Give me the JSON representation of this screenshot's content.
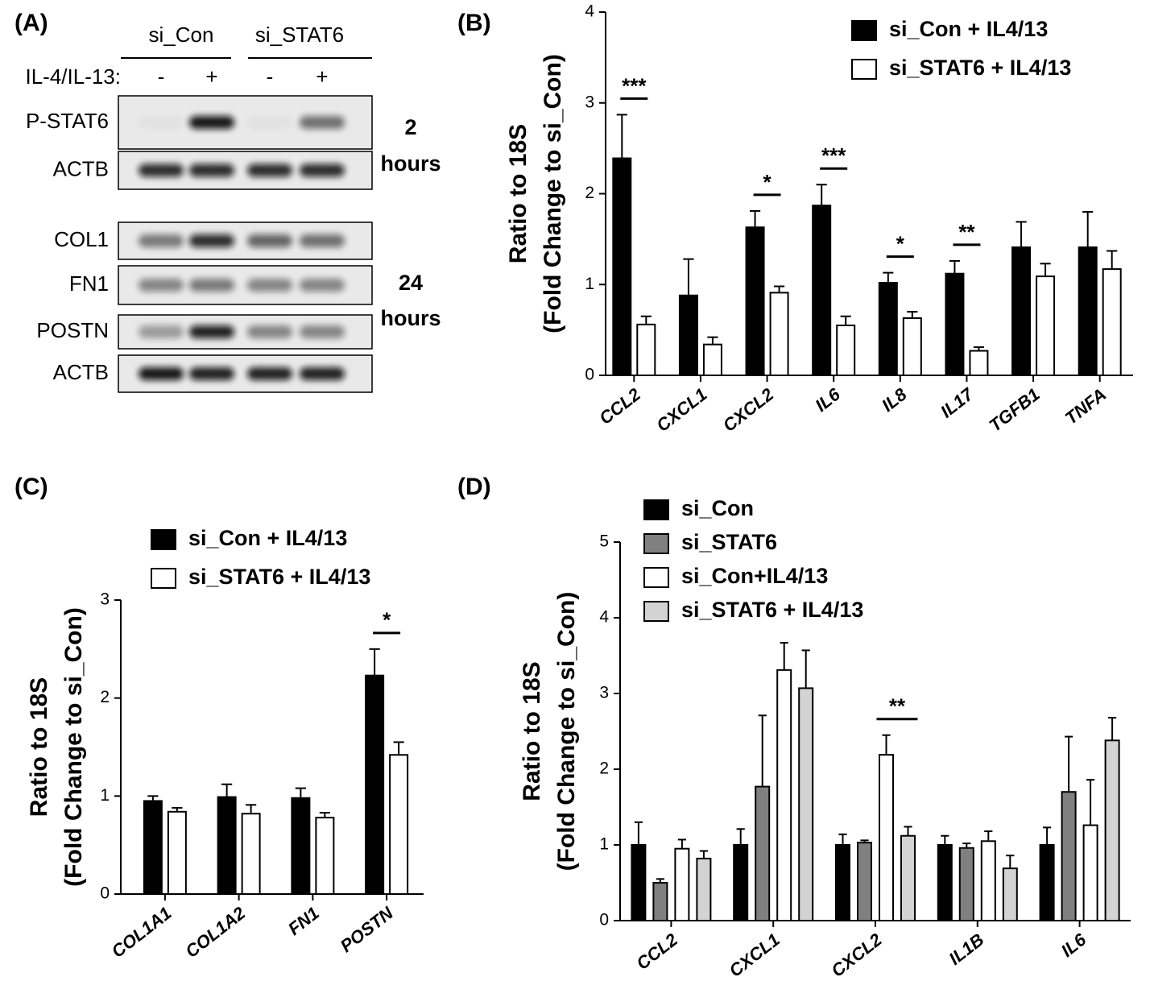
{
  "blot": {
    "label": "(A)",
    "groups": [
      "si_Con",
      "si_STAT6"
    ],
    "treatment_label": "IL-4/IL-13:",
    "treatments": [
      "-",
      "+",
      "-",
      "+"
    ],
    "sections": [
      {
        "rows": [
          "P-STAT6",
          "ACTB"
        ],
        "time": [
          "2",
          "hours"
        ]
      },
      {
        "rows": [
          "COL1",
          "FN1",
          "POSTN",
          "ACTB"
        ],
        "time": [
          "24",
          "hours"
        ]
      }
    ]
  },
  "chart_data": [
    {
      "type": "bar",
      "label": "(B)",
      "ylabel": [
        "Ratio to 18S",
        "(Fold Change to si_Con)"
      ],
      "categories": [
        "CCL2",
        "CXCL1",
        "CXCL2",
        "IL6",
        "IL8",
        "IL17",
        "TGFB1",
        "TNFA"
      ],
      "series": [
        {
          "name": "si_Con + IL4/13",
          "color": "#000000",
          "values": [
            2.39,
            0.88,
            1.63,
            1.87,
            1.02,
            1.12,
            1.41,
            1.41
          ],
          "errors": [
            0.48,
            0.4,
            0.18,
            0.23,
            0.11,
            0.14,
            0.28,
            0.39
          ]
        },
        {
          "name": "si_STAT6 + IL4/13",
          "color": "#ffffff",
          "values": [
            0.56,
            0.34,
            0.91,
            0.55,
            0.63,
            0.27,
            1.09,
            1.17
          ],
          "errors": [
            0.09,
            0.08,
            0.07,
            0.1,
            0.07,
            0.04,
            0.14,
            0.2
          ]
        }
      ],
      "significance": [
        "***",
        null,
        "*",
        "***",
        "*",
        "**",
        null,
        null
      ],
      "ylim": [
        0,
        4
      ],
      "yticks": [
        0,
        1,
        2,
        3,
        4
      ],
      "legend": "upper right"
    },
    {
      "type": "bar",
      "label": "(C)",
      "ylabel": [
        "Ratio to 18S",
        "(Fold Change to si_Con)"
      ],
      "categories": [
        "COL1A1",
        "COL1A2",
        "FN1",
        "POSTN"
      ],
      "series": [
        {
          "name": "si_Con + IL4/13",
          "color": "#000000",
          "values": [
            0.95,
            0.99,
            0.98,
            2.23
          ],
          "errors": [
            0.05,
            0.13,
            0.1,
            0.27
          ]
        },
        {
          "name": "si_STAT6 + IL4/13",
          "color": "#ffffff",
          "values": [
            0.84,
            0.82,
            0.78,
            1.42
          ],
          "errors": [
            0.04,
            0.09,
            0.05,
            0.13
          ]
        }
      ],
      "significance": [
        null,
        null,
        null,
        "*"
      ],
      "ylim": [
        0,
        3
      ],
      "yticks": [
        0,
        1,
        2,
        3
      ],
      "legend": "upper left"
    },
    {
      "type": "bar",
      "label": "(D)",
      "ylabel": [
        "Ratio to 18S",
        "(Fold Change to si_Con)"
      ],
      "categories": [
        "CCL2",
        "CXCL1",
        "CXCL2",
        "IL1B",
        "IL6"
      ],
      "series": [
        {
          "name": "si_Con",
          "color": "#000000",
          "values": [
            1.0,
            1.0,
            1.0,
            1.0,
            1.0
          ],
          "errors": [
            0.3,
            0.21,
            0.14,
            0.12,
            0.23
          ]
        },
        {
          "name": "si_STAT6",
          "color": "#808080",
          "values": [
            0.5,
            1.77,
            1.03,
            0.96,
            1.7
          ],
          "errors": [
            0.05,
            0.94,
            0.03,
            0.06,
            0.73
          ]
        },
        {
          "name": "si_Con+IL4/13",
          "color": "#ffffff",
          "values": [
            0.95,
            3.31,
            2.19,
            1.05,
            1.26
          ],
          "errors": [
            0.12,
            0.36,
            0.26,
            0.13,
            0.6
          ]
        },
        {
          "name": "si_STAT6 + IL4/13",
          "color": "#d3d3d3",
          "values": [
            0.82,
            3.07,
            1.12,
            0.69,
            2.38
          ],
          "errors": [
            0.1,
            0.5,
            0.12,
            0.17,
            0.3
          ]
        }
      ],
      "significance": [
        null,
        null,
        "**",
        null,
        null
      ],
      "ylim": [
        0,
        5
      ],
      "yticks": [
        0,
        1,
        2,
        3,
        4,
        5
      ],
      "legend": "upper left"
    }
  ]
}
